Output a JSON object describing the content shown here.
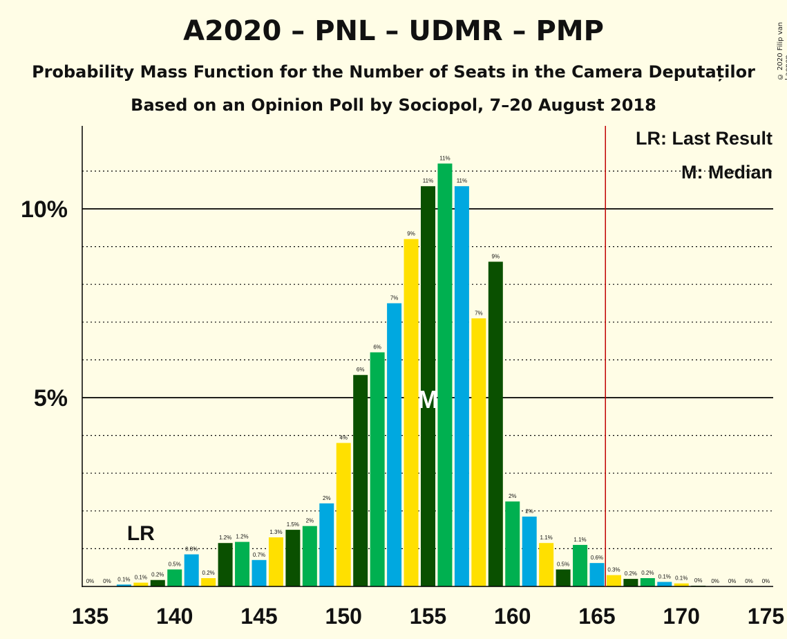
{
  "title": "A2020 – PNL – UDMR – PMP",
  "subtitle": "Probability Mass Function for the Number of Seats in the Camera Deputaților",
  "subtitle2": "Based on an Opinion Poll by Sociopol, 7–20 August 2018",
  "copyright": "© 2020 Filip van Laenen",
  "legend": {
    "lr": "LR: Last Result",
    "median": "M: Median"
  },
  "colors": {
    "background": "#FFFDE6",
    "cycle": [
      "#0A5000",
      "#00B050",
      "#00A8E0",
      "#FFE000"
    ],
    "threshold_line": "#C00000"
  },
  "chart_data": {
    "type": "bar",
    "x": [
      135,
      136,
      137,
      138,
      139,
      140,
      141,
      142,
      143,
      144,
      145,
      146,
      147,
      148,
      149,
      150,
      151,
      152,
      153,
      154,
      155,
      156,
      157,
      158,
      159,
      160,
      161,
      162,
      163,
      164,
      165,
      166,
      167,
      168,
      169,
      170,
      171,
      172,
      173,
      174,
      175
    ],
    "values": [
      0,
      0,
      0.05,
      0.1,
      0.17,
      0.45,
      0.85,
      0.22,
      1.15,
      1.18,
      0.7,
      1.3,
      1.5,
      1.6,
      2.2,
      3.8,
      5.6,
      6.2,
      7.5,
      9.2,
      10.6,
      11.2,
      10.6,
      7.1,
      8.6,
      2.25,
      1.85,
      1.15,
      0.45,
      1.1,
      0.62,
      0.3,
      0.2,
      0.22,
      0.12,
      0.08,
      0.02,
      0,
      0,
      0,
      0
    ],
    "labels": [
      "0%",
      "0%",
      "0.1%",
      "0.1%",
      "0.2%",
      "0.5%",
      "0.8%",
      "0.2%",
      "1.2%",
      "1.2%",
      "0.7%",
      "1.3%",
      "1.5%",
      "2%",
      "2%",
      "4%",
      "6%",
      "6%",
      "7%",
      "9%",
      "11%",
      "11%",
      "11%",
      "7%",
      "9%",
      "2%",
      "2%",
      "1.1%",
      "0.5%",
      "1.1%",
      "0.6%",
      "0.3%",
      "0.2%",
      "0.2%",
      "0.1%",
      "0.1%",
      "0%",
      "0%",
      "0%",
      "0%",
      "0%"
    ],
    "x_ticks": [
      "135",
      "140",
      "145",
      "150",
      "155",
      "160",
      "165",
      "170",
      "175"
    ],
    "y_ticks": [
      "5%",
      "10%"
    ],
    "ylim": [
      0,
      12
    ],
    "last_result": 138,
    "last_result_label": "LR",
    "median": 155,
    "median_label": "M",
    "majority_threshold": 166,
    "grid": true,
    "legend_position": "top-right"
  }
}
